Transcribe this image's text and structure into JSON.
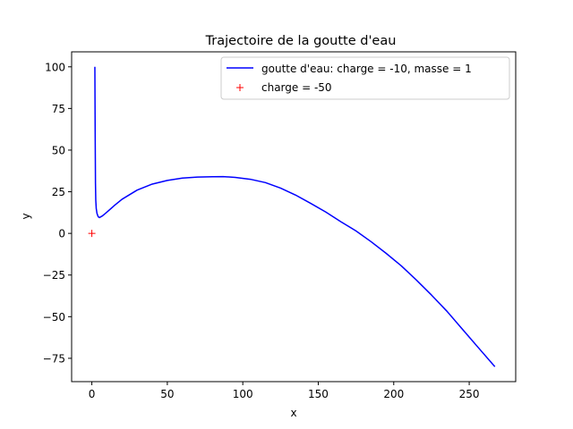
{
  "chart_data": {
    "type": "line",
    "title": "Trajectoire de la goutte d'eau",
    "xlabel": "x",
    "ylabel": "y",
    "xlim": [
      -13.4,
      280.8
    ],
    "ylim": [
      -89.0,
      109.0
    ],
    "xticks": [
      0,
      50,
      100,
      150,
      200,
      250
    ],
    "yticks": [
      -75,
      -50,
      -25,
      0,
      25,
      50,
      75,
      100
    ],
    "grid": false,
    "legend_position": "top-right",
    "series": [
      {
        "name": "goutte d'eau: charge = -10, masse = 1",
        "kind": "line",
        "color": "#0000ff",
        "x": [
          2.0,
          2.1,
          2.2,
          2.3,
          2.4,
          2.6,
          2.9,
          3.4,
          4.2,
          5.0,
          7.0,
          10,
          15,
          20,
          30,
          40,
          50,
          60,
          70,
          80,
          87,
          95,
          105,
          115,
          125,
          135,
          145,
          155,
          165,
          175,
          185,
          195,
          205,
          215,
          225,
          235,
          245,
          255,
          267
        ],
        "y": [
          100,
          80,
          60,
          45,
          30,
          20,
          15,
          12,
          10.0,
          9.5,
          10.5,
          12.8,
          16.8,
          20.5,
          26.0,
          29.6,
          31.8,
          33.2,
          33.8,
          34.0,
          34.1,
          33.6,
          32.5,
          30.5,
          27.2,
          23.0,
          18.0,
          12.8,
          7.0,
          1.5,
          -5.0,
          -12.0,
          -19.5,
          -28.0,
          -37.0,
          -46.5,
          -57.0,
          -67.5,
          -80.0
        ]
      },
      {
        "name": "charge = -50",
        "kind": "marker",
        "marker": "+",
        "color": "#ff0000",
        "x": [
          0
        ],
        "y": [
          0
        ]
      }
    ]
  }
}
